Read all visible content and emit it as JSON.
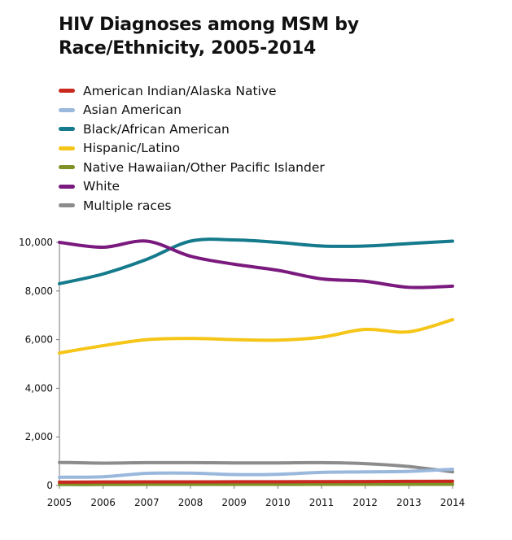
{
  "chart_data": {
    "type": "line",
    "title": "HIV Diagnoses among MSM by Race/Ethnicity, 2005-2014",
    "title_lines": [
      "HIV Diagnoses among MSM by",
      "Race/Ethnicity, 2005-2014"
    ],
    "xlabel": "",
    "ylabel": "",
    "x": [
      2005,
      2006,
      2007,
      2008,
      2009,
      2010,
      2011,
      2012,
      2013,
      2014
    ],
    "x_tick_labels": [
      "2005",
      "2006",
      "2007",
      "2008",
      "2009",
      "2010",
      "2011",
      "2012",
      "2013",
      "2014"
    ],
    "ylim": [
      0,
      10000
    ],
    "y_ticks": [
      0,
      2000,
      4000,
      6000,
      8000,
      10000
    ],
    "y_tick_labels": [
      "0",
      "2,000",
      "4,000",
      "6,000",
      "8,000",
      "10,000"
    ],
    "grid": false,
    "legend_position": "top-left",
    "series": [
      {
        "name": "American Indian/Alaska Native",
        "color": "#c8281e",
        "values": [
          140,
          145,
          150,
          150,
          155,
          155,
          160,
          165,
          170,
          175
        ]
      },
      {
        "name": "Asian American",
        "color": "#9ab7dc",
        "values": [
          340,
          360,
          500,
          510,
          450,
          460,
          540,
          560,
          580,
          670
        ]
      },
      {
        "name": "Black/African American",
        "color": "#147a8c",
        "values": [
          8300,
          8700,
          9300,
          10050,
          10100,
          10000,
          9850,
          9850,
          9950,
          10050
        ]
      },
      {
        "name": "Hispanic/Latino",
        "color": "#f5c518",
        "values": [
          5450,
          5750,
          6000,
          6050,
          6000,
          5980,
          6100,
          6420,
          6320,
          6820
        ]
      },
      {
        "name": "Native Hawaiian/Other Pacific Islander",
        "color": "#7e9228",
        "values": [
          40,
          40,
          45,
          45,
          45,
          45,
          50,
          50,
          50,
          50
        ]
      },
      {
        "name": "White",
        "color": "#7a1a7e",
        "values": [
          10000,
          9800,
          10050,
          9430,
          9100,
          8850,
          8500,
          8400,
          8150,
          8200
        ]
      },
      {
        "name": "Multiple races",
        "color": "#8c8c8c",
        "values": [
          950,
          920,
          940,
          940,
          930,
          930,
          940,
          900,
          780,
          560
        ]
      }
    ]
  }
}
